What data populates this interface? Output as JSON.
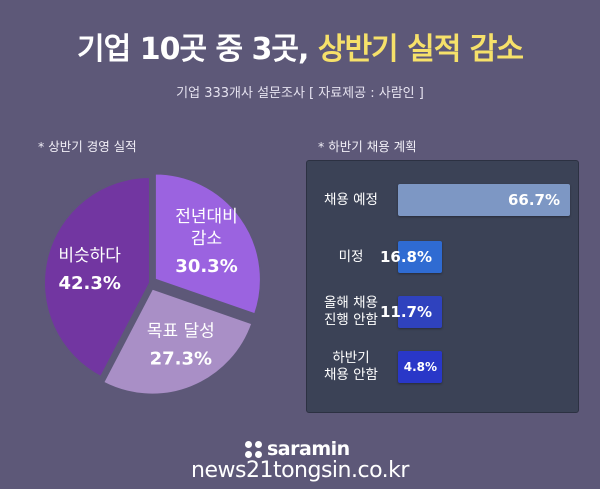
{
  "header": {
    "title_main": "기업 10곳 중 3곳, ",
    "title_highlight": "상반기 실적 감소",
    "subtitle": "기업 333개사 설문조사 [ 자료제공 : 사람인 ]"
  },
  "chart_data": [
    {
      "type": "pie",
      "title": "* 상반기 경영 실적",
      "slices": [
        {
          "label": "전년대비\n감소",
          "value": 30.3,
          "value_label": "30.3%",
          "color": "#9b63e0"
        },
        {
          "label": "목표 달성",
          "value": 27.3,
          "value_label": "27.3%",
          "color": "#a98fc6"
        },
        {
          "label": "비슷하다",
          "value": 42.3,
          "value_label": "42.3%",
          "color": "#7236a1"
        }
      ]
    },
    {
      "type": "bar",
      "orientation": "horizontal",
      "title": "* 하반기 채용 계획",
      "categories": [
        "채용 예정",
        "미정",
        "올해 채용\n진행 안함",
        "하반기\n채용 안함"
      ],
      "values": [
        66.7,
        16.8,
        11.7,
        4.8
      ],
      "value_labels": [
        "66.7%",
        "16.8%",
        "11.7%",
        "4.8%"
      ],
      "colors": [
        "#7d97c4",
        "#2f6bd2",
        "#2f42be",
        "#2937c8"
      ]
    }
  ],
  "brand": {
    "logo_text": "saramin",
    "watermark": "news21tongsin.co.kr"
  }
}
